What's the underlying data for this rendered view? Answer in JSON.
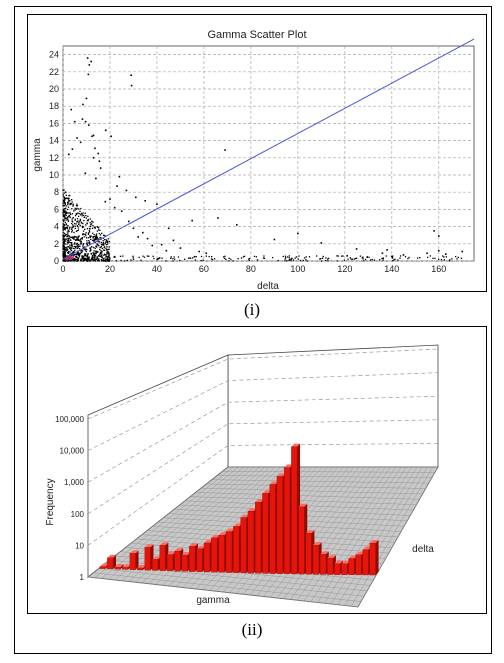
{
  "captions": {
    "top": "(i)",
    "bottom": "(ii)"
  },
  "colors": {
    "points": "#000000",
    "trend": "#4a55d6",
    "highlight": "#e0206a",
    "bars": "#e8140a",
    "floor": "#c8c8c8"
  },
  "chart_data": [
    {
      "type": "scatter",
      "title": "Gamma Scatter Plot",
      "xlabel": "delta",
      "ylabel": "gamma",
      "xlim": [
        0,
        175
      ],
      "ylim": [
        0,
        25
      ],
      "x_ticks": [
        0,
        20,
        40,
        60,
        80,
        100,
        120,
        140,
        160
      ],
      "y_ticks": [
        0,
        2,
        4,
        6,
        8,
        10,
        12,
        14,
        16,
        18,
        20,
        22,
        24
      ],
      "grid": true,
      "trend_line": {
        "x": [
          0,
          175
        ],
        "y": [
          0.2,
          25.8
        ]
      },
      "points": [
        [
          10.5,
          23.6
        ],
        [
          11.2,
          22.8
        ],
        [
          10.8,
          21.7
        ],
        [
          12,
          23.2
        ],
        [
          29,
          21.6
        ],
        [
          29.2,
          20.4
        ],
        [
          8.5,
          18.2
        ],
        [
          10,
          18.9
        ],
        [
          3.5,
          17.6
        ],
        [
          5,
          16.2
        ],
        [
          8.3,
          16.5
        ],
        [
          9.6,
          16.2
        ],
        [
          11,
          15.8
        ],
        [
          18.2,
          15.2
        ],
        [
          12.4,
          14.5
        ],
        [
          13,
          14.6
        ],
        [
          20.5,
          14.5
        ],
        [
          7.5,
          13.8
        ],
        [
          13.6,
          13.1
        ],
        [
          69,
          12.9
        ],
        [
          13,
          12
        ],
        [
          15.5,
          11.6
        ],
        [
          24,
          9.8
        ],
        [
          9.5,
          10.2
        ],
        [
          14,
          9.6
        ],
        [
          23,
          8.7
        ],
        [
          27,
          8.2
        ],
        [
          31,
          7.4
        ],
        [
          20,
          7.2
        ],
        [
          35,
          7.0
        ],
        [
          40,
          6.6
        ],
        [
          18,
          6.9
        ],
        [
          22,
          6.2
        ],
        [
          25,
          5.8
        ],
        [
          55,
          4.7
        ],
        [
          74,
          4.2
        ],
        [
          66,
          5.0
        ],
        [
          45,
          3.8
        ],
        [
          100,
          3.2
        ],
        [
          136,
          0.9
        ],
        [
          138,
          1.3
        ],
        [
          158,
          3.5
        ],
        [
          160,
          2.9
        ],
        [
          160,
          1.2
        ],
        [
          170,
          1.1
        ],
        [
          163,
          0.8
        ],
        [
          121,
          0.6
        ],
        [
          155,
          0.9
        ],
        [
          56,
          0.5
        ],
        [
          58,
          1.1
        ],
        [
          61,
          0.9
        ],
        [
          90,
          2.5
        ],
        [
          110,
          2.1
        ],
        [
          125,
          1.4
        ],
        [
          145,
          0.7
        ],
        [
          34,
          3.3
        ],
        [
          36,
          2.6
        ],
        [
          42,
          1.9
        ],
        [
          47,
          2.4
        ],
        [
          50,
          1.5
        ],
        [
          28,
          4.6
        ],
        [
          30,
          3.8
        ],
        [
          32,
          2.8
        ],
        [
          38,
          1.8
        ],
        [
          44,
          1.2
        ],
        [
          15,
          12.5
        ],
        [
          16,
          10.8
        ],
        [
          6,
          14.3
        ],
        [
          4,
          13.0
        ],
        [
          2.5,
          12.4
        ]
      ],
      "dense_cluster": {
        "x_max": 20,
        "y_max": 8.5,
        "count": 900
      },
      "highlight_points": [
        [
          2,
          0.3
        ],
        [
          3,
          0.5
        ],
        [
          1.5,
          0.2
        ],
        [
          4,
          0.4
        ]
      ]
    },
    {
      "type": "bar",
      "chart_style": "3d",
      "ylabel": "Frequency",
      "x_axis_label": "gamma",
      "depth_axis_label": "delta",
      "y_scale": "log",
      "y_ticks": [
        "1",
        "10",
        "100",
        "1,000",
        "10,000",
        "100,000"
      ],
      "series": [
        {
          "values": [
            1,
            2,
            1,
            1,
            3,
            1,
            5,
            2,
            6,
            3,
            4,
            3,
            6,
            5,
            8,
            12,
            15,
            20,
            30,
            60,
            100,
            200,
            400,
            800,
            1500,
            3000,
            15000,
            150,
            20,
            8,
            4,
            3,
            2,
            2,
            3,
            4,
            6,
            10
          ]
        }
      ]
    }
  ]
}
